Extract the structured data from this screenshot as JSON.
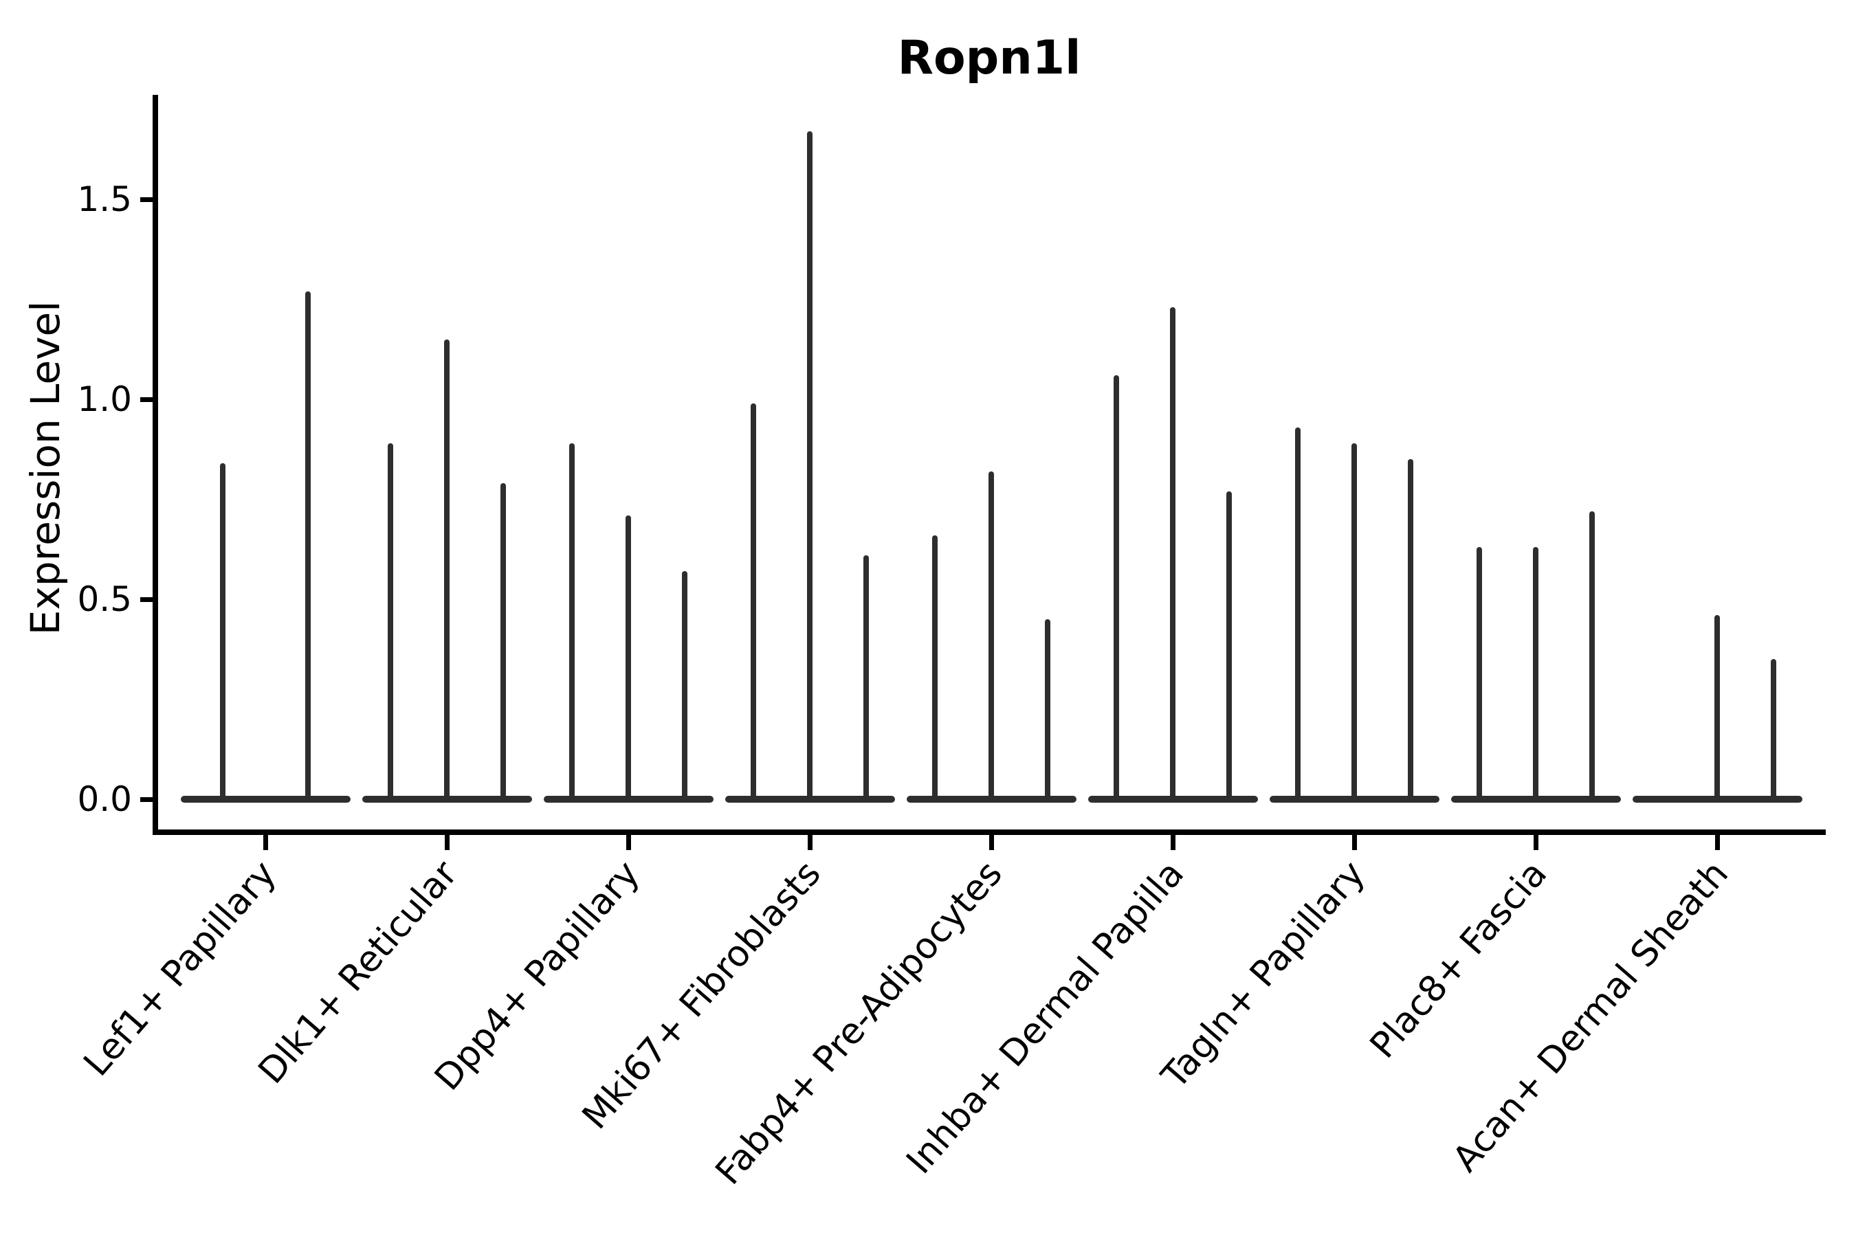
{
  "chart_data": {
    "type": "violin",
    "title": "Ropn1l",
    "ylabel": "Expression Level",
    "xlabel": "",
    "grid": false,
    "legend_position": "none",
    "ylim": [
      -0.08,
      1.76
    ],
    "yticks": [
      0.0,
      0.5,
      1.0,
      1.5
    ],
    "ytick_labels": [
      "0.0",
      "0.5",
      "1.0",
      "1.5"
    ],
    "violin_color": "#2e2e2e",
    "axis_color": "#000000",
    "categories": [
      "Lef1+ Papillary",
      "Dlk1+ Reticular",
      "Dpp4+ Papillary",
      "Mki67+ Fibroblasts",
      "Fabp4+ Pre-Adipocytes",
      "Inhba+ Dermal Papilla",
      "Tagln+ Papillary",
      "Plac8+ Fascia",
      "Acan+ Dermal Sheath"
    ],
    "groups": [
      {
        "label": "Lef1+ Papillary",
        "violin_maxima": [
          0.84,
          1.27
        ]
      },
      {
        "label": "Dlk1+ Reticular",
        "violin_maxima": [
          0.89,
          1.15,
          0.79
        ]
      },
      {
        "label": "Dpp4+ Papillary",
        "violin_maxima": [
          0.89,
          0.71,
          0.57
        ]
      },
      {
        "label": "Mki67+ Fibroblasts",
        "violin_maxima": [
          0.99,
          1.67,
          0.61
        ]
      },
      {
        "label": "Fabp4+ Pre-Adipocytes",
        "violin_maxima": [
          0.66,
          0.82,
          0.45
        ]
      },
      {
        "label": "Inhba+ Dermal Papilla",
        "violin_maxima": [
          1.06,
          1.23,
          0.77
        ]
      },
      {
        "label": "Tagln+ Papillary",
        "violin_maxima": [
          0.93,
          0.89,
          0.85
        ]
      },
      {
        "label": "Plac8+ Fascia",
        "violin_maxima": [
          0.63,
          0.63,
          0.72
        ]
      },
      {
        "label": "Acan+ Dermal Sheath",
        "violin_maxima": [
          0.0,
          0.46,
          0.35
        ]
      }
    ],
    "shape_note": "each violin is collapsed at 0 (flat bar) with a thin vertical spike reaching its maximum"
  }
}
